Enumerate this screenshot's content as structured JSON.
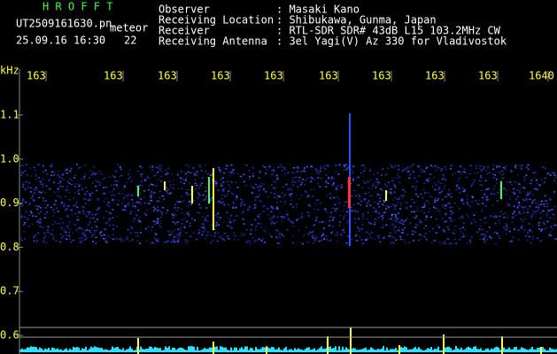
{
  "header": {
    "app": "H R O F F T",
    "file": "UT2509161630.pn",
    "tag": "meteor",
    "datetime": "25.09.16 16:30",
    "count": "22",
    "fields": [
      {
        "label": "Observer",
        "value": ": Masaki Kano"
      },
      {
        "label": "Receiving Location",
        "value": ": Shibukawa, Gunma, Japan"
      },
      {
        "label": "Receiver",
        "value": ": RTL-SDR SDR# 43dB L15 103.2MHz CW"
      },
      {
        "label": "Receiving Antenna",
        "value": ": 3el Yagi(V) Az 330 for Vladivostok"
      }
    ]
  },
  "axes": {
    "unit": "kHz",
    "time_labels": [
      "163",
      "163",
      "163",
      "163",
      "163",
      "163",
      "163",
      "163",
      "163",
      "1640"
    ],
    "freq_labels": [
      "1.1",
      "1.0",
      "0.9",
      "0.8",
      "0.7",
      "0.6"
    ]
  }
}
